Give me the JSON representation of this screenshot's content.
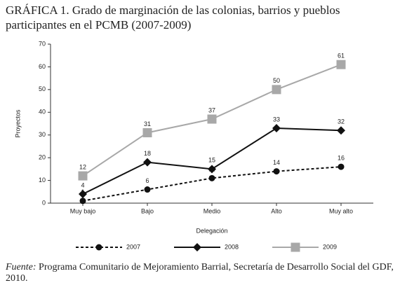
{
  "chart_data": {
    "type": "line",
    "title": "GRÁFICA 1. Grado de marginación de las colonias, barrios y pueblos participantes en el PCMB (2007-2009)",
    "x_label": "Delegación",
    "y_label": "Proyectos",
    "categories": [
      "Muy bajo",
      "Bajo",
      "Medio",
      "Alto",
      "Muy alto"
    ],
    "series": [
      {
        "name": "2007",
        "color": "#111111",
        "line_style": "dashed",
        "marker": "circle",
        "values": [
          1,
          6,
          11,
          14,
          16
        ]
      },
      {
        "name": "2008",
        "color": "#111111",
        "line_style": "solid",
        "marker": "diamond",
        "values": [
          4,
          18,
          15,
          33,
          32
        ]
      },
      {
        "name": "2009",
        "color": "#a8a8a8",
        "line_style": "solid",
        "marker": "square",
        "values": [
          12,
          31,
          37,
          50,
          61
        ]
      }
    ],
    "ylim": [
      0,
      70
    ],
    "yticks": [
      0,
      10,
      20,
      30,
      40,
      50,
      60,
      70
    ],
    "source_label": "Fuente:",
    "source": "Programa Comunitario de Mejoramiento Barrial, Secretaría de Desarrollo Social del GDF, 2010."
  }
}
